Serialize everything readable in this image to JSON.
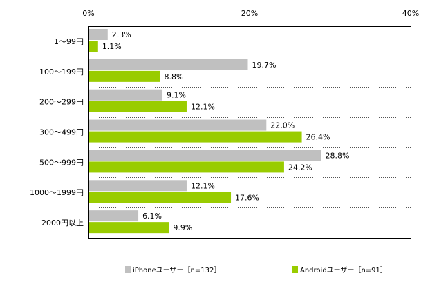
{
  "chart_data": {
    "type": "bar",
    "orientation": "horizontal",
    "categories": [
      "1～99円",
      "100～199円",
      "200～299円",
      "300～499円",
      "500～999円",
      "1000～1999円",
      "2000円以上"
    ],
    "series": [
      {
        "name": "iPhoneユーザー［n=132］",
        "values": [
          2.3,
          19.7,
          9.1,
          22.0,
          28.8,
          12.1,
          6.1
        ],
        "labels": [
          "2.3%",
          "19.7%",
          "9.1%",
          "22.0%",
          "28.8%",
          "12.1%",
          "6.1%"
        ],
        "color": "#c0c0c0"
      },
      {
        "name": "Androidユーザー［n=91］",
        "values": [
          1.1,
          8.8,
          12.1,
          26.4,
          24.2,
          17.6,
          9.9
        ],
        "labels": [
          "1.1%",
          "8.8%",
          "12.1%",
          "26.4%",
          "24.2%",
          "17.6%",
          "9.9%"
        ],
        "color": "#99cc00"
      }
    ],
    "xlim": [
      0,
      40
    ],
    "xticks": [
      0,
      20,
      40
    ],
    "xtick_labels": [
      "0%",
      "20%",
      "40%"
    ],
    "legend_position": "bottom",
    "grid": "dashed category separators"
  }
}
